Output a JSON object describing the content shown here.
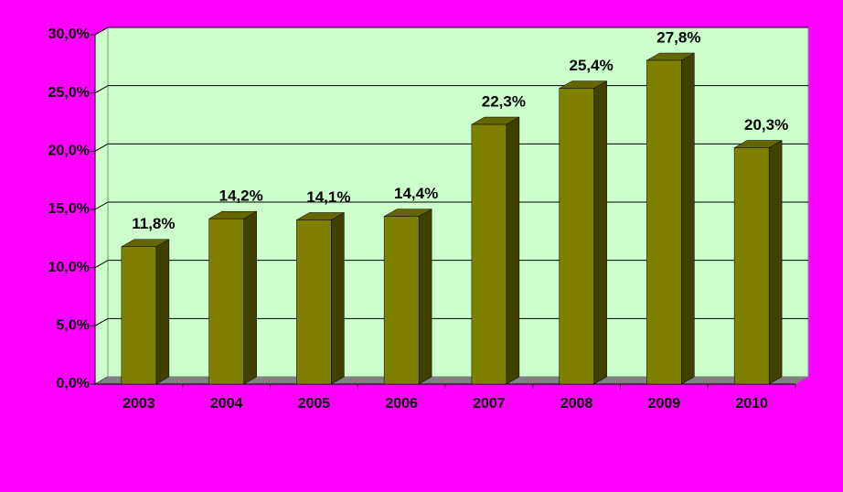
{
  "chart_data": {
    "type": "bar",
    "categories": [
      "2003",
      "2004",
      "2005",
      "2006",
      "2007",
      "2008",
      "2009",
      "2010"
    ],
    "values": [
      11.8,
      14.2,
      14.1,
      14.4,
      22.3,
      25.4,
      27.8,
      20.3
    ],
    "value_labels": [
      "11,8%",
      "14,2%",
      "14,1%",
      "14,4%",
      "22,3%",
      "25,4%",
      "27,8%",
      "20,3%"
    ],
    "color": "#808000",
    "ylim": [
      0,
      30
    ],
    "yticks": [
      {
        "value": 0,
        "label": "0,0%"
      },
      {
        "value": 5,
        "label": "5,0%"
      },
      {
        "value": 10,
        "label": "10,0%"
      },
      {
        "value": 15,
        "label": "15,0%"
      },
      {
        "value": 20,
        "label": "20,0%"
      },
      {
        "value": 25,
        "label": "25,0%"
      },
      {
        "value": 30,
        "label": "30,0%"
      }
    ],
    "grid": true
  }
}
